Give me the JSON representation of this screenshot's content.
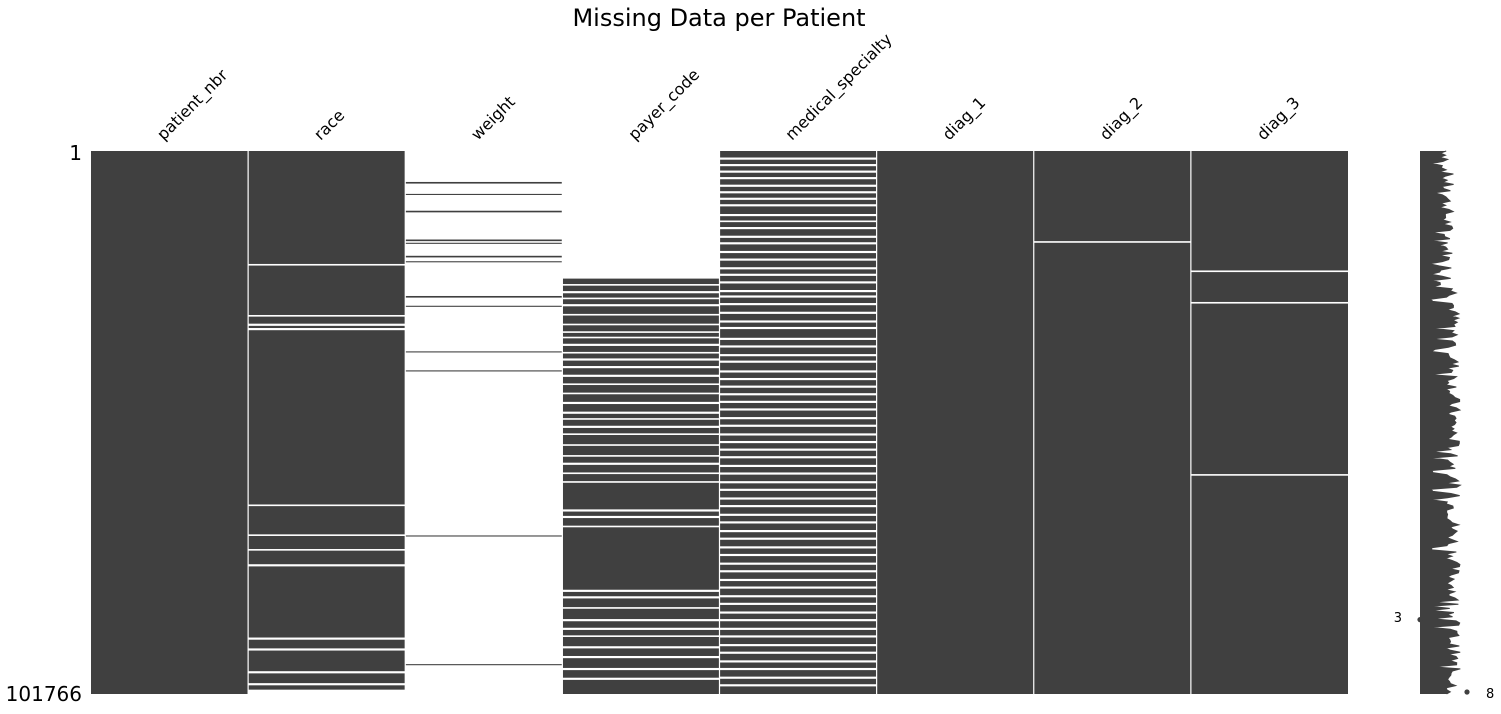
{
  "chart_data": {
    "type": "heatmap",
    "variant": "missingness-matrix",
    "title": "Missing Data per Patient",
    "columns": [
      "patient_nbr",
      "race",
      "weight",
      "payer_code",
      "medical_specialty",
      "diag_1",
      "diag_2",
      "diag_3"
    ],
    "row_range": [
      1,
      101766
    ],
    "row_tick_labels": [
      "1",
      "101766"
    ],
    "colors": {
      "present": "#404040",
      "missing": "#ffffff",
      "separator": "#ffffff"
    },
    "columns_detail": [
      {
        "name": "patient_nbr",
        "mostly": "present",
        "gaps": []
      },
      {
        "name": "race",
        "mostly": "present",
        "gaps": [
          [
            0.208,
            0.211
          ],
          [
            0.302,
            0.305
          ],
          [
            0.318,
            0.322
          ],
          [
            0.326,
            0.33
          ],
          [
            0.651,
            0.654
          ],
          [
            0.706,
            0.709
          ],
          [
            0.733,
            0.736
          ],
          [
            0.761,
            0.765
          ],
          [
            0.896,
            0.9
          ],
          [
            0.916,
            0.92
          ],
          [
            0.958,
            0.962
          ],
          [
            0.98,
            0.984
          ],
          [
            0.992,
            1.0
          ]
        ]
      },
      {
        "name": "weight",
        "mostly": "missing",
        "present_bands": [
          [
            0.057,
            0.06
          ],
          [
            0.079,
            0.081
          ],
          [
            0.11,
            0.113
          ],
          [
            0.163,
            0.166
          ],
          [
            0.169,
            0.171
          ],
          [
            0.193,
            0.196
          ],
          [
            0.203,
            0.205
          ],
          [
            0.267,
            0.27
          ],
          [
            0.285,
            0.287
          ],
          [
            0.369,
            0.371
          ],
          [
            0.404,
            0.406
          ],
          [
            0.708,
            0.71
          ],
          [
            0.945,
            0.947
          ]
        ]
      },
      {
        "name": "payer_code",
        "mostly": "mixed",
        "present_from": 0.235,
        "gaps": [
          [
            0.245,
            0.248
          ],
          [
            0.258,
            0.262
          ],
          [
            0.27,
            0.273
          ],
          [
            0.282,
            0.286
          ],
          [
            0.3,
            0.303
          ],
          [
            0.318,
            0.321
          ],
          [
            0.332,
            0.335
          ],
          [
            0.342,
            0.345
          ],
          [
            0.355,
            0.359
          ],
          [
            0.37,
            0.373
          ],
          [
            0.382,
            0.386
          ],
          [
            0.396,
            0.4
          ],
          [
            0.412,
            0.416
          ],
          [
            0.428,
            0.431
          ],
          [
            0.445,
            0.448
          ],
          [
            0.462,
            0.466
          ],
          [
            0.48,
            0.484
          ],
          [
            0.492,
            0.495
          ],
          [
            0.506,
            0.51
          ],
          [
            0.52,
            0.523
          ],
          [
            0.54,
            0.543
          ],
          [
            0.56,
            0.563
          ],
          [
            0.574,
            0.578
          ],
          [
            0.592,
            0.595
          ],
          [
            0.608,
            0.611
          ],
          [
            0.66,
            0.664
          ],
          [
            0.672,
            0.676
          ],
          [
            0.69,
            0.693
          ],
          [
            0.808,
            0.812
          ],
          [
            0.82,
            0.824
          ],
          [
            0.84,
            0.843
          ],
          [
            0.862,
            0.866
          ],
          [
            0.878,
            0.882
          ],
          [
            0.892,
            0.895
          ],
          [
            0.912,
            0.916
          ],
          [
            0.93,
            0.934
          ],
          [
            0.952,
            0.956
          ],
          [
            0.97,
            0.974
          ]
        ]
      },
      {
        "name": "medical_specialty",
        "mostly": "mixed",
        "gaps": [
          [
            0.012,
            0.016
          ],
          [
            0.024,
            0.028
          ],
          [
            0.036,
            0.04
          ],
          [
            0.048,
            0.052
          ],
          [
            0.062,
            0.066
          ],
          [
            0.074,
            0.078
          ],
          [
            0.086,
            0.09
          ],
          [
            0.098,
            0.102
          ],
          [
            0.116,
            0.12
          ],
          [
            0.128,
            0.131
          ],
          [
            0.14,
            0.144
          ],
          [
            0.156,
            0.16
          ],
          [
            0.168,
            0.172
          ],
          [
            0.184,
            0.188
          ],
          [
            0.198,
            0.202
          ],
          [
            0.214,
            0.218
          ],
          [
            0.226,
            0.23
          ],
          [
            0.24,
            0.244
          ],
          [
            0.256,
            0.26
          ],
          [
            0.266,
            0.27
          ],
          [
            0.28,
            0.284
          ],
          [
            0.296,
            0.3
          ],
          [
            0.312,
            0.316
          ],
          [
            0.324,
            0.328
          ],
          [
            0.344,
            0.348
          ],
          [
            0.358,
            0.362
          ],
          [
            0.374,
            0.378
          ],
          [
            0.386,
            0.39
          ],
          [
            0.404,
            0.408
          ],
          [
            0.418,
            0.422
          ],
          [
            0.432,
            0.436
          ],
          [
            0.446,
            0.45
          ],
          [
            0.46,
            0.464
          ],
          [
            0.474,
            0.478
          ],
          [
            0.49,
            0.494
          ],
          [
            0.504,
            0.508
          ],
          [
            0.52,
            0.524
          ],
          [
            0.534,
            0.538
          ],
          [
            0.548,
            0.552
          ],
          [
            0.562,
            0.566
          ],
          [
            0.578,
            0.582
          ],
          [
            0.592,
            0.596
          ],
          [
            0.608,
            0.612
          ],
          [
            0.622,
            0.626
          ],
          [
            0.638,
            0.642
          ],
          [
            0.652,
            0.656
          ],
          [
            0.668,
            0.672
          ],
          [
            0.682,
            0.686
          ],
          [
            0.698,
            0.702
          ],
          [
            0.712,
            0.716
          ],
          [
            0.728,
            0.732
          ],
          [
            0.742,
            0.746
          ],
          [
            0.758,
            0.762
          ],
          [
            0.772,
            0.776
          ],
          [
            0.788,
            0.792
          ],
          [
            0.802,
            0.806
          ],
          [
            0.818,
            0.822
          ],
          [
            0.832,
            0.836
          ],
          [
            0.848,
            0.852
          ],
          [
            0.862,
            0.866
          ],
          [
            0.878,
            0.882
          ],
          [
            0.892,
            0.896
          ],
          [
            0.908,
            0.912
          ],
          [
            0.922,
            0.926
          ],
          [
            0.938,
            0.942
          ],
          [
            0.952,
            0.956
          ],
          [
            0.968,
            0.972
          ],
          [
            0.982,
            0.986
          ]
        ]
      },
      {
        "name": "diag_1",
        "mostly": "present",
        "gaps": []
      },
      {
        "name": "diag_2",
        "mostly": "present",
        "gaps": [
          [
            0.166,
            0.169
          ]
        ]
      },
      {
        "name": "diag_3",
        "mostly": "present",
        "gaps": [
          [
            0.22,
            0.223
          ],
          [
            0.278,
            0.281
          ],
          [
            0.595,
            0.598
          ]
        ]
      }
    ],
    "sparkline": {
      "label_min": "3",
      "label_max": "8",
      "min_value": 3,
      "max_value": 8,
      "min_at": 0.863,
      "max_at": 1.0,
      "color": "#404040"
    }
  }
}
